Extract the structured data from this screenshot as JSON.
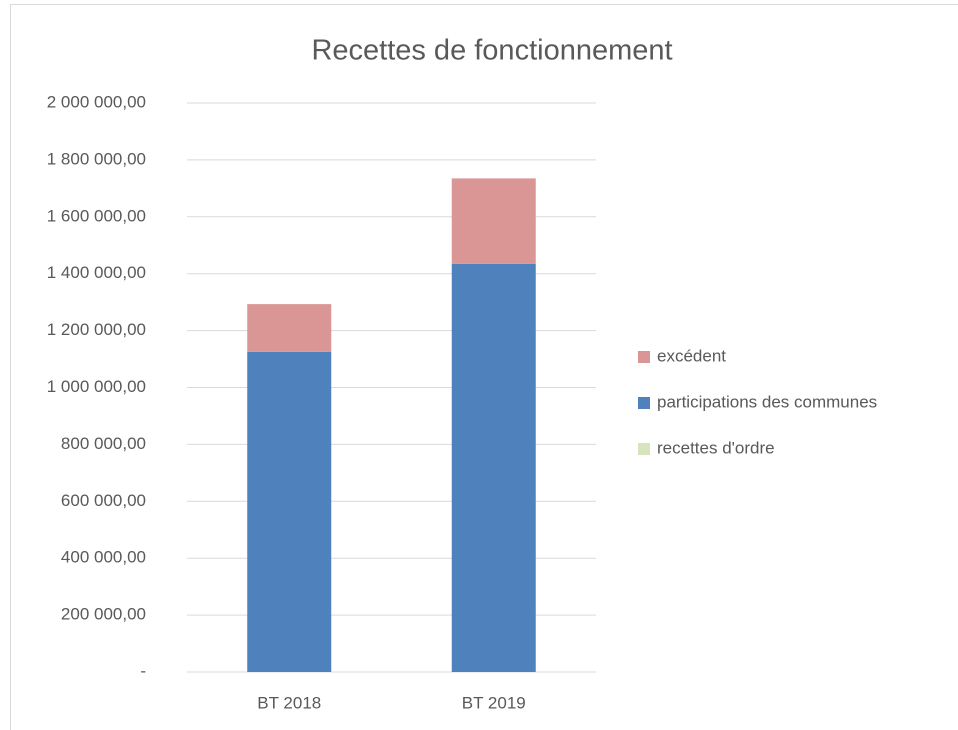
{
  "chart_data": {
    "type": "bar",
    "stacked": true,
    "title": "Recettes de fonctionnement",
    "categories": [
      "BT 2018",
      "BT 2019"
    ],
    "series": [
      {
        "name": "recettes d'ordre",
        "color": "#d7e4bd",
        "values": [
          0,
          0
        ]
      },
      {
        "name": "participations des communes",
        "color": "#4f81bd",
        "values": [
          1125000,
          1435000
        ]
      },
      {
        "name": "excédent",
        "color": "#d99694",
        "values": [
          168000,
          300000
        ]
      }
    ],
    "ylim": [
      0,
      2000000
    ],
    "yticks": [
      {
        "value": 0,
        "label": "-"
      },
      {
        "value": 200000,
        "label": "200 000,00"
      },
      {
        "value": 400000,
        "label": "400 000,00"
      },
      {
        "value": 600000,
        "label": "600 000,00"
      },
      {
        "value": 800000,
        "label": "800 000,00"
      },
      {
        "value": 1000000,
        "label": "1 000 000,00"
      },
      {
        "value": 1200000,
        "label": "1 200 000,00"
      },
      {
        "value": 1400000,
        "label": "1 400 000,00"
      },
      {
        "value": 1600000,
        "label": "1 600 000,00"
      },
      {
        "value": 1800000,
        "label": "1 800 000,00"
      },
      {
        "value": 2000000,
        "label": "2 000 000,00"
      }
    ],
    "grid": true,
    "legend": "right"
  }
}
